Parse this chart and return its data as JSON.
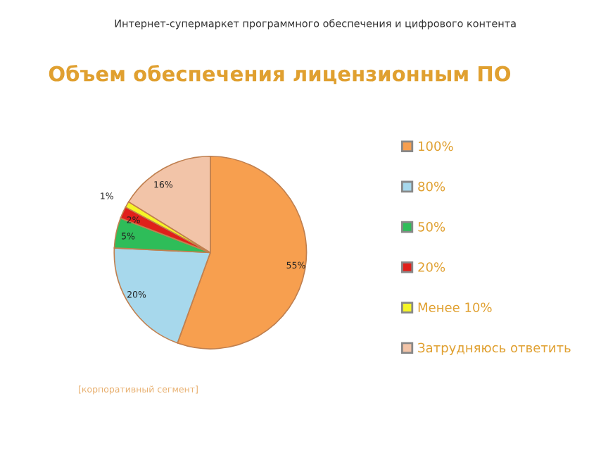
{
  "chart_data": {
    "type": "pie",
    "title": "Объем обеспечения лицензионным ПО",
    "categories": [
      "100%",
      "80%",
      "50%",
      "20%",
      "Менее 10%",
      "Затрудняюсь ответить"
    ],
    "values": [
      55,
      20,
      5,
      2,
      1,
      16
    ],
    "colors": [
      "#f79f4f",
      "#a7d8ec",
      "#2ebd59",
      "#e0201b",
      "#f5f526",
      "#f2c4a8"
    ],
    "value_labels": [
      "55%",
      "20%",
      "5%",
      "2%",
      "1%",
      "16%"
    ],
    "legend": "right",
    "annotations": [
      "Интернет-супермаркет программного обеспечения и цифрового контента",
      "[корпоративный сегмент]"
    ]
  }
}
